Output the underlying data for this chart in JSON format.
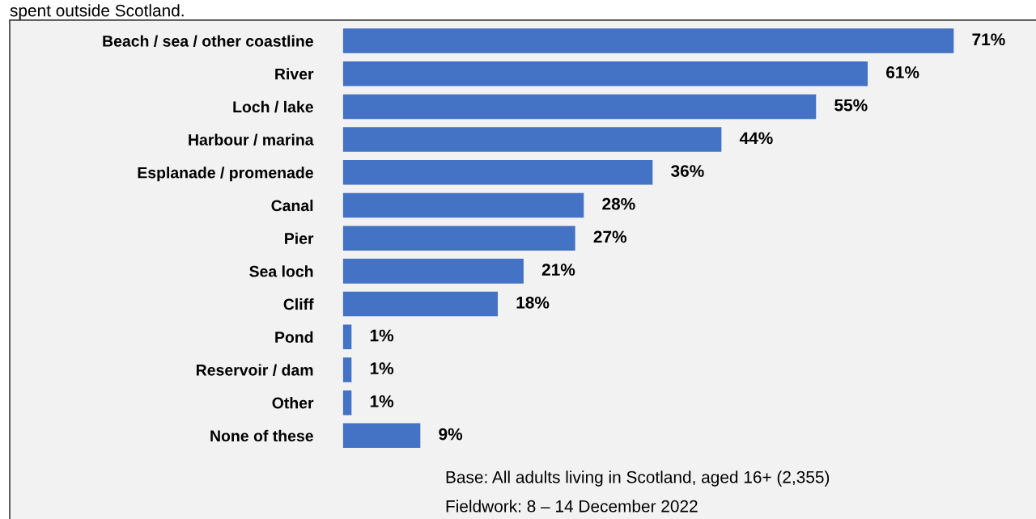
{
  "chart_data": {
    "type": "bar",
    "orientation": "horizontal",
    "title": "spent outside Scotland.",
    "categories": [
      "Beach / sea / other coastline",
      "River",
      "Loch / lake",
      "Harbour / marina",
      "Esplanade / promenade",
      "Canal",
      "Pier",
      "Sea loch",
      "Cliff",
      "Pond",
      "Reservoir / dam",
      "Other",
      "None of these"
    ],
    "values": [
      71,
      61,
      55,
      44,
      36,
      28,
      27,
      21,
      18,
      1,
      1,
      1,
      9
    ],
    "value_labels": [
      "71%",
      "61%",
      "55%",
      "44%",
      "36%",
      "28%",
      "27%",
      "21%",
      "18%",
      "1%",
      "1%",
      "1%",
      "9%"
    ],
    "color": "#4472c4",
    "annotations": [
      "Base: All adults living in Scotland, aged 16+ (2,355)",
      "Fieldwork: 8 – 14 December 2022"
    ]
  }
}
